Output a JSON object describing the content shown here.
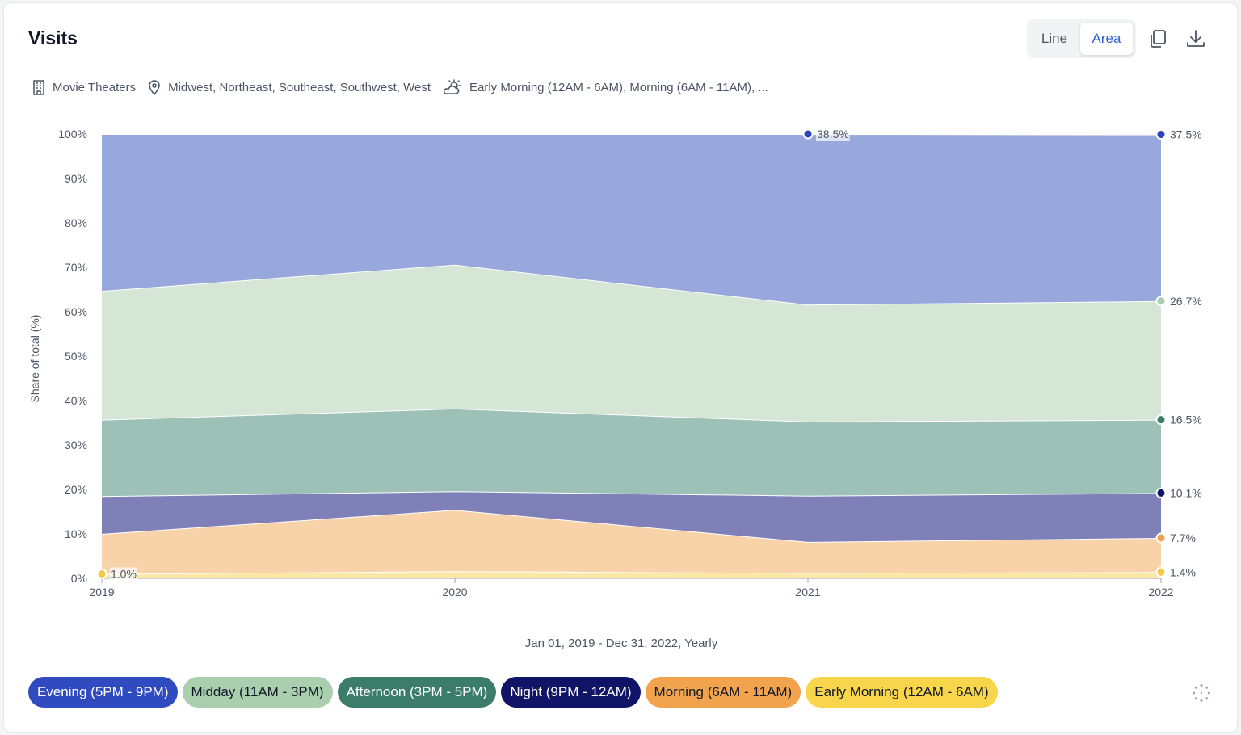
{
  "header": {
    "title": "Visits",
    "view_toggle": {
      "line_label": "Line",
      "area_label": "Area",
      "selected": "Area"
    },
    "copy_icon": "copy-icon",
    "download_icon": "download-icon"
  },
  "filters": {
    "category": {
      "icon": "building-icon",
      "text": "Movie Theaters"
    },
    "regions": {
      "icon": "map-pin-icon",
      "text": "Midwest, Northeast, Southeast, Southwest, West"
    },
    "dayparts": {
      "icon": "sun-cloud-icon",
      "text": "Early Morning (12AM - 6AM), Morning (6AM - 11AM), ..."
    }
  },
  "footer": {
    "date_range": "Jan 01, 2019 - Dec 31, 2022, Yearly"
  },
  "colors": {
    "evening": "#98a7dc",
    "midday": "#d5e5d6",
    "afternoon": "#9ec1b7",
    "night": "#8080b8",
    "morning": "#f8d2a8",
    "early_morning": "#fbe8a6"
  },
  "chart_data": {
    "type": "area",
    "stacked": true,
    "x": [
      "2019",
      "2020",
      "2021",
      "2022"
    ],
    "ylabel": "Share of total (%)",
    "ylim": [
      0,
      100
    ],
    "yticks": [
      "0%",
      "10%",
      "20%",
      "30%",
      "40%",
      "50%",
      "60%",
      "70%",
      "80%",
      "90%",
      "100%"
    ],
    "grid": true,
    "legend_position": "bottom",
    "series": [
      {
        "name": "Early Morning (12AM - 6AM)",
        "values": [
          1.0,
          1.6,
          1.2,
          1.4
        ],
        "color": "#fbe8a6",
        "dot_color": "#f6c844",
        "chip_bg": "#f9d54c",
        "chip_text": "#111827"
      },
      {
        "name": "Morning (6AM - 11AM)",
        "values": [
          9.0,
          13.8,
          7.0,
          7.7
        ],
        "color": "#f8d2a8",
        "dot_color": "#f0a14e",
        "chip_bg": "#f2a34d",
        "chip_text": "#111827"
      },
      {
        "name": "Night (9PM - 12AM)",
        "values": [
          8.5,
          4.2,
          10.4,
          10.1
        ],
        "color": "#8080b8",
        "dot_color": "#101466",
        "chip_bg": "#101466",
        "chip_text": "#ffffff"
      },
      {
        "name": "Afternoon (3PM - 5PM)",
        "values": [
          17.2,
          18.6,
          16.7,
          16.5
        ],
        "color": "#9ec1b7",
        "dot_color": "#3c7d6a",
        "chip_bg": "#3c7d6a",
        "chip_text": "#ffffff"
      },
      {
        "name": "Midday (11AM - 3PM)",
        "values": [
          29.0,
          32.4,
          26.3,
          26.7
        ],
        "color": "#d5e5d6",
        "dot_color": "#a8ceb0",
        "chip_bg": "#a9cfaf",
        "chip_text": "#111827"
      },
      {
        "name": "Evening (5PM - 9PM)",
        "values": [
          35.3,
          29.4,
          38.5,
          37.5
        ],
        "color": "#98a7dc",
        "dot_color": "#2e45b8",
        "chip_bg": "#2f4bbf",
        "chip_text": "#ffffff"
      }
    ],
    "annotations": [
      {
        "series": "Early Morning (12AM - 6AM)",
        "x": "2019",
        "label": "1.0%"
      },
      {
        "series": "Evening (5PM - 9PM)",
        "x": "2021",
        "label": "38.5%"
      },
      {
        "series": "Evening (5PM - 9PM)",
        "x": "2022",
        "label": "37.5%"
      },
      {
        "series": "Midday (11AM - 3PM)",
        "x": "2022",
        "label": "26.7%"
      },
      {
        "series": "Afternoon (3PM - 5PM)",
        "x": "2022",
        "label": "16.5%"
      },
      {
        "series": "Night (9PM - 12AM)",
        "x": "2022",
        "label": "10.1%"
      },
      {
        "series": "Morning (6AM - 11AM)",
        "x": "2022",
        "label": "7.7%"
      },
      {
        "series": "Early Morning (12AM - 6AM)",
        "x": "2022",
        "label": "1.4%"
      }
    ],
    "legend_order": [
      "Evening (5PM - 9PM)",
      "Midday (11AM - 3PM)",
      "Afternoon (3PM - 5PM)",
      "Night (9PM - 12AM)",
      "Morning (6AM - 11AM)",
      "Early Morning (12AM - 6AM)"
    ]
  },
  "loading_icon": "loading-spinner-icon"
}
